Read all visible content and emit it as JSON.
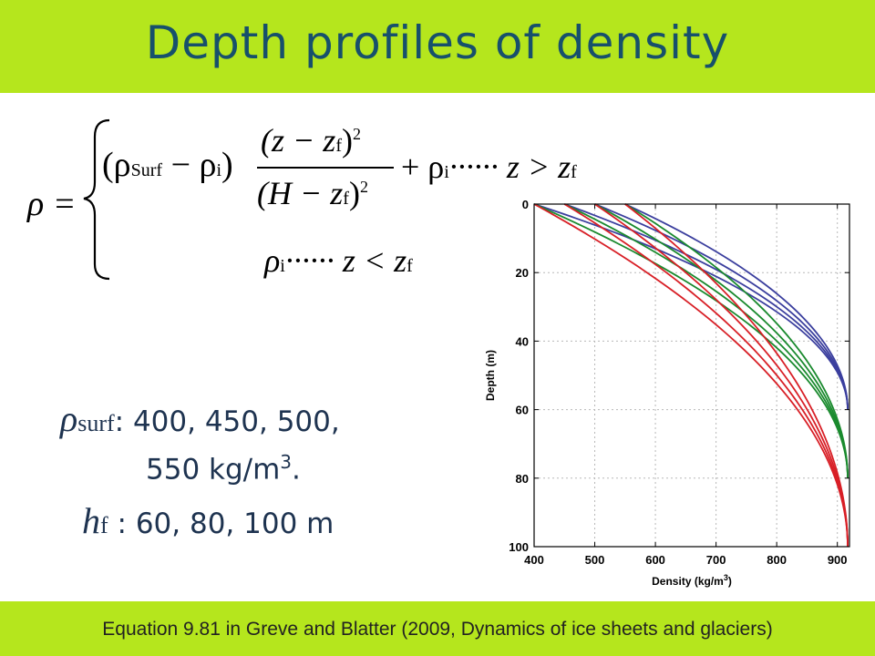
{
  "slide": {
    "title": "Depth profiles of density",
    "footer": "Equation 9.81 in Greve and Blatter (2009, Dynamics of ice sheets and glaciers)"
  },
  "equation": {
    "lhs": "ρ =",
    "case1_factor": "(ρ",
    "case1_factor_sub": "Surf",
    "case1_minus": " − ρ",
    "case1_minus_sub": "i",
    "case1_close": ")",
    "numerator": "(z − z",
    "numerator_sub": "f",
    "numerator_close": ")",
    "numerator_exp": "2",
    "denominator": "(H − z",
    "denominator_sub": "f",
    "denominator_close": ")",
    "denominator_exp": "2",
    "plus": "+ ρ",
    "plus_sub": "i",
    "case1_condition": "······ z > z",
    "case1_condition_sub": "f",
    "case2_value": "ρ",
    "case2_value_sub": "i",
    "case2_condition": "······ z < z",
    "case2_condition_sub": "f"
  },
  "params": {
    "rho_symbol": "ρ",
    "rho_sub": "surf",
    "rho_values": ": 400, 450, 500,",
    "rho_values_2": "550 kg/m",
    "rho_values_2_sup": "3",
    "rho_values_2_end": ".",
    "h_symbol": "h",
    "h_sub": "f",
    "h_values": " : 60, 80, 100 m"
  },
  "chart_data": {
    "type": "line",
    "title": "",
    "xlabel": "Density (kg/m",
    "xlabel_sup": "3",
    "xlabel_end": ")",
    "ylabel": "Depth (m)",
    "xlim": [
      400,
      920
    ],
    "ylim": [
      0,
      100
    ],
    "y_inverted": true,
    "x_ticks": [
      400,
      500,
      600,
      700,
      800,
      900
    ],
    "y_ticks": [
      0,
      20,
      40,
      60,
      80,
      100
    ],
    "grid": true,
    "rho_ice": 917,
    "depth_total_H": 100,
    "model": "rho = (rho_surf - rho_i) * (z - z_f)^2 / (H - z_f)^2 + rho_i, z measured upward from bed, depth = H - z, firn thickness h_f = H - z_f",
    "series": [
      {
        "rho_surf": 400,
        "h_f": 60,
        "color": "#3b3f9e"
      },
      {
        "rho_surf": 450,
        "h_f": 60,
        "color": "#3b3f9e"
      },
      {
        "rho_surf": 500,
        "h_f": 60,
        "color": "#3b3f9e"
      },
      {
        "rho_surf": 550,
        "h_f": 60,
        "color": "#3b3f9e"
      },
      {
        "rho_surf": 400,
        "h_f": 80,
        "color": "#1a8a2e"
      },
      {
        "rho_surf": 450,
        "h_f": 80,
        "color": "#1a8a2e"
      },
      {
        "rho_surf": 500,
        "h_f": 80,
        "color": "#1a8a2e"
      },
      {
        "rho_surf": 550,
        "h_f": 80,
        "color": "#1a8a2e"
      },
      {
        "rho_surf": 400,
        "h_f": 100,
        "color": "#d81f26"
      },
      {
        "rho_surf": 450,
        "h_f": 100,
        "color": "#d81f26"
      },
      {
        "rho_surf": 500,
        "h_f": 100,
        "color": "#d81f26"
      },
      {
        "rho_surf": 550,
        "h_f": 100,
        "color": "#d81f26"
      }
    ]
  }
}
